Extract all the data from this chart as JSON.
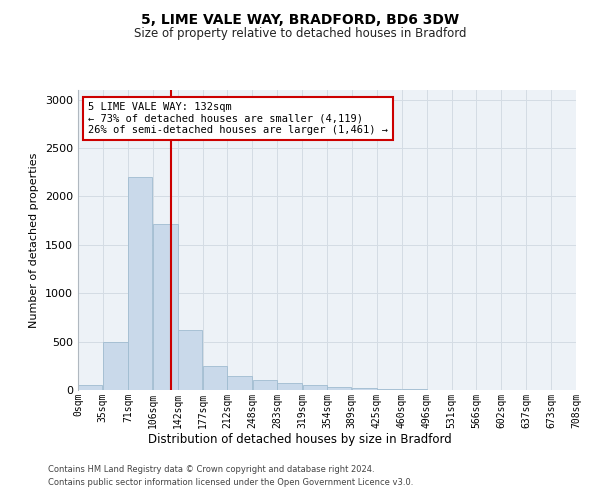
{
  "title": "5, LIME VALE WAY, BRADFORD, BD6 3DW",
  "subtitle": "Size of property relative to detached houses in Bradford",
  "xlabel": "Distribution of detached houses by size in Bradford",
  "ylabel": "Number of detached properties",
  "bar_color": "#c9d9ea",
  "bar_edge_color": "#a0bcd0",
  "grid_color": "#d4dce4",
  "background_color": "#edf2f7",
  "vline_x": 132,
  "vline_color": "#cc0000",
  "annotation_box_color": "#cc0000",
  "annotation_text_line1": "5 LIME VALE WAY: 132sqm",
  "annotation_text_line2": "← 73% of detached houses are smaller (4,119)",
  "annotation_text_line3": "26% of semi-detached houses are larger (1,461) →",
  "footnote1": "Contains HM Land Registry data © Crown copyright and database right 2024.",
  "footnote2": "Contains public sector information licensed under the Open Government Licence v3.0.",
  "bin_edges": [
    0,
    35,
    71,
    106,
    142,
    177,
    212,
    248,
    283,
    319,
    354,
    389,
    425,
    460,
    496,
    531,
    566,
    602,
    637,
    673,
    708
  ],
  "bin_labels": [
    "0sqm",
    "35sqm",
    "71sqm",
    "106sqm",
    "142sqm",
    "177sqm",
    "212sqm",
    "248sqm",
    "283sqm",
    "319sqm",
    "354sqm",
    "389sqm",
    "425sqm",
    "460sqm",
    "496sqm",
    "531sqm",
    "566sqm",
    "602sqm",
    "637sqm",
    "673sqm",
    "708sqm"
  ],
  "bar_heights": [
    50,
    500,
    2200,
    1720,
    620,
    250,
    145,
    105,
    75,
    50,
    30,
    20,
    15,
    10,
    5,
    5,
    3,
    2,
    1,
    1
  ],
  "ylim": [
    0,
    3100
  ],
  "yticks": [
    0,
    500,
    1000,
    1500,
    2000,
    2500,
    3000
  ]
}
